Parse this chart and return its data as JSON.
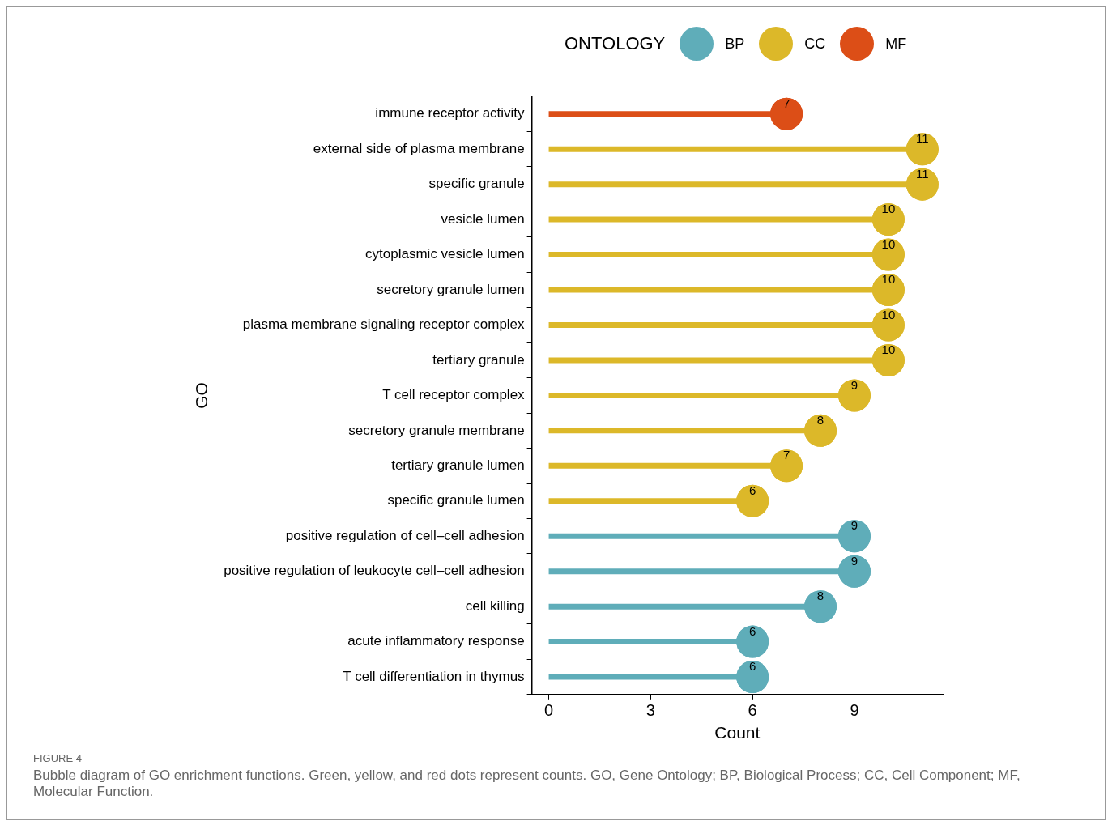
{
  "chart_data": {
    "type": "lollipop",
    "orientation": "horizontal",
    "xlabel": "Count",
    "ylabel": "GO",
    "legend_title": "ONTOLOGY",
    "legend": "top",
    "data_labels": true,
    "grid": false,
    "categories": [
      "immune receptor activity",
      "external side of plasma membrane",
      "specific granule",
      "vesicle lumen",
      "cytoplasmic vesicle lumen",
      "secretory granule lumen",
      "plasma membrane signaling receptor complex",
      "tertiary granule",
      "T cell receptor complex",
      "secretory granule membrane",
      "tertiary granule lumen",
      "specific granule lumen",
      "positive regulation of cell–cell adhesion",
      "positive regulation of leukocyte cell–cell adhesion",
      "cell killing",
      "acute inflammatory response",
      "T cell differentiation in thymus"
    ],
    "xlim": [
      -0.5,
      11.6
    ],
    "xticks": [
      0,
      3,
      6,
      9
    ],
    "series": [
      {
        "name": "BP",
        "color": "#5fadb9",
        "values": [
          null,
          null,
          null,
          null,
          null,
          null,
          null,
          null,
          null,
          null,
          null,
          null,
          9,
          9,
          8,
          6,
          6
        ]
      },
      {
        "name": "CC",
        "color": "#dcb829",
        "values": [
          null,
          11,
          11,
          10,
          10,
          10,
          10,
          10,
          9,
          8,
          7,
          6,
          null,
          null,
          null,
          null,
          null
        ]
      },
      {
        "name": "MF",
        "color": "#dc4e17",
        "values": [
          7,
          null,
          null,
          null,
          null,
          null,
          null,
          null,
          null,
          null,
          null,
          null,
          null,
          null,
          null,
          null,
          null
        ]
      }
    ],
    "annotations": [
      "FIGURE 4",
      "Bubble diagram of GO enrichment functions. Green, yellow, and red dots represent counts. GO, Gene Ontology; BP, Biological Process; CC, Cell Component; MF, Molecular Function."
    ]
  }
}
